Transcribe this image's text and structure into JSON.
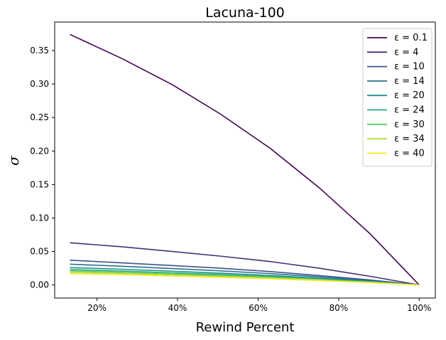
{
  "chart_data": {
    "type": "line",
    "title": "Lacuna-100",
    "xlabel": "Rewind Percent",
    "ylabel": "σ",
    "x": [
      13.3,
      26.2,
      38.7,
      50.7,
      63.0,
      75.2,
      87.7,
      100
    ],
    "xticks": [
      20,
      40,
      60,
      80,
      100
    ],
    "xtick_labels": [
      "20%",
      "40%",
      "60%",
      "80%",
      "100%"
    ],
    "xlim": [
      9.5,
      104
    ],
    "ylim": [
      -0.0195,
      0.3925
    ],
    "yticks": [
      0.0,
      0.05,
      0.1,
      0.15,
      0.2,
      0.25,
      0.3,
      0.35
    ],
    "ytick_labels": [
      "0.00",
      "0.05",
      "0.10",
      "0.15",
      "0.20",
      "0.25",
      "0.30",
      "0.35"
    ],
    "grid": false,
    "legend_position": "top-right",
    "series": [
      {
        "name": "ε = 0.1",
        "color": "#440154",
        "values": [
          0.374,
          0.338,
          0.299,
          0.255,
          0.204,
          0.145,
          0.077,
          0.0
        ]
      },
      {
        "name": "ε = 4",
        "color": "#472d7b",
        "values": [
          0.063,
          0.057,
          0.05,
          0.043,
          0.035,
          0.025,
          0.013,
          0.0
        ]
      },
      {
        "name": "ε = 10",
        "color": "#3b528b",
        "values": [
          0.037,
          0.033,
          0.029,
          0.025,
          0.02,
          0.014,
          0.0075,
          0.0
        ]
      },
      {
        "name": "ε = 14",
        "color": "#2c728e",
        "values": [
          0.031,
          0.028,
          0.0245,
          0.021,
          0.017,
          0.012,
          0.0063,
          0.0
        ]
      },
      {
        "name": "ε = 20",
        "color": "#21918c",
        "values": [
          0.026,
          0.0235,
          0.0206,
          0.0176,
          0.0142,
          0.01,
          0.0053,
          0.0
        ]
      },
      {
        "name": "ε = 24",
        "color": "#28ae80",
        "values": [
          0.023,
          0.0208,
          0.0182,
          0.0156,
          0.0126,
          0.0089,
          0.0047,
          0.0
        ]
      },
      {
        "name": "ε = 30",
        "color": "#5ec962",
        "values": [
          0.021,
          0.019,
          0.0166,
          0.0142,
          0.0115,
          0.0081,
          0.0043,
          0.0
        ]
      },
      {
        "name": "ε = 34",
        "color": "#addc30",
        "values": [
          0.019,
          0.0172,
          0.015,
          0.0128,
          0.0104,
          0.0073,
          0.0039,
          0.0
        ]
      },
      {
        "name": "ε = 40",
        "color": "#fde725",
        "values": [
          0.017,
          0.0154,
          0.0135,
          0.0115,
          0.0093,
          0.0066,
          0.0035,
          0.0
        ]
      }
    ]
  }
}
